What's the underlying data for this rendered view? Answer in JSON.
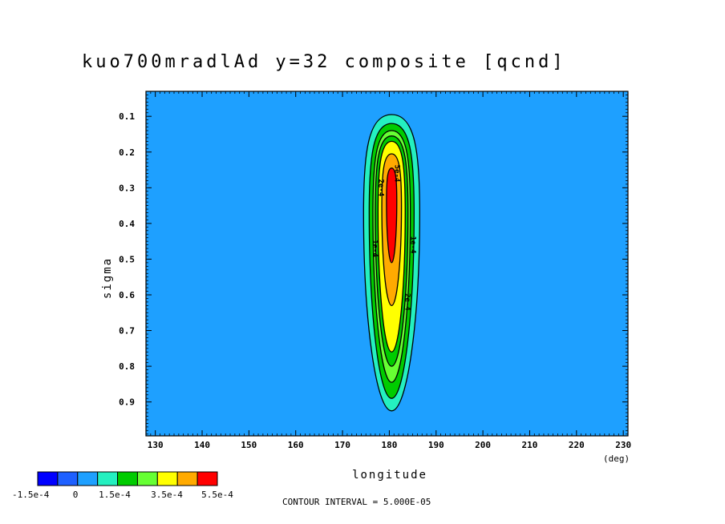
{
  "chart_data": {
    "type": "contour",
    "title": "kuo700mradlAd y=32 composite [qcnd]",
    "xlabel": "longitude",
    "xunit": "(deg)",
    "ylabel": "sigma",
    "xlim": [
      128,
      231
    ],
    "ylim": [
      0.03,
      0.995
    ],
    "x_ticks": [
      130,
      140,
      150,
      160,
      170,
      180,
      190,
      200,
      210,
      220,
      230
    ],
    "x_tick_labels": [
      "130",
      "140",
      "150",
      "160",
      "170",
      "180",
      "190",
      "200",
      "210",
      "220",
      "230"
    ],
    "y_ticks": [
      0.1,
      0.2,
      0.3,
      0.4,
      0.5,
      0.6,
      0.7,
      0.8,
      0.9
    ],
    "y_tick_labels": [
      "0.1",
      "0.2",
      "0.3",
      "0.4",
      "0.5",
      "0.6",
      "0.7",
      "0.8",
      "0.9"
    ],
    "background_color": "#1ea0ff",
    "colorbar": {
      "colors": [
        "#0000ff",
        "#1e60ff",
        "#1ea0ff",
        "#24f0c0",
        "#00cc00",
        "#66ff33",
        "#ffff00",
        "#ffaa00",
        "#ff0000"
      ],
      "labels": [
        "-1.5e-4",
        "0",
        "1.5e-4",
        "3.5e-4",
        "5.5e-4"
      ]
    },
    "contour_interval_text": "CONTOUR INTERVAL = 5.000E-05",
    "feature": {
      "center_lon": 180.5,
      "peak_sigma": 0.37,
      "levels": [
        {
          "value": 5e-05,
          "color": "#24f0c0",
          "lon_half_width": 6.0,
          "sigma_top": 0.095,
          "sigma_bottom": 0.925
        },
        {
          "value": 0.0001,
          "color": "#00cc00",
          "lon_half_width": 4.8,
          "sigma_top": 0.12,
          "sigma_bottom": 0.89
        },
        {
          "value": 0.00015,
          "color": "#66ff33",
          "lon_half_width": 4.0,
          "sigma_top": 0.14,
          "sigma_bottom": 0.845
        },
        {
          "value": 0.0002,
          "color": "#00cc00",
          "lon_half_width": 3.5,
          "sigma_top": 0.155,
          "sigma_bottom": 0.8
        },
        {
          "value": 0.00025,
          "color": "#ffff00",
          "lon_half_width": 2.9,
          "sigma_top": 0.17,
          "sigma_bottom": 0.76
        },
        {
          "value": 0.00035,
          "color": "#ffaa00",
          "lon_half_width": 2.1,
          "sigma_top": 0.205,
          "sigma_bottom": 0.63
        },
        {
          "value": 0.00055,
          "color": "#ff0000",
          "lon_half_width": 1.1,
          "sigma_top": 0.245,
          "sigma_bottom": 0.51
        }
      ]
    },
    "contour_labels": [
      {
        "text": "1e-4",
        "lon": 176.5,
        "sigma": 0.47,
        "rotate": 90
      },
      {
        "text": "1e-4",
        "lon": 184.6,
        "sigma": 0.46,
        "rotate": 90
      },
      {
        "text": "2e-4",
        "lon": 177.8,
        "sigma": 0.3,
        "rotate": 90
      },
      {
        "text": "2e-4",
        "lon": 183.4,
        "sigma": 0.62,
        "rotate": 90
      },
      {
        "text": "5e-4",
        "lon": 181.2,
        "sigma": 0.26,
        "rotate": 90
      }
    ]
  }
}
